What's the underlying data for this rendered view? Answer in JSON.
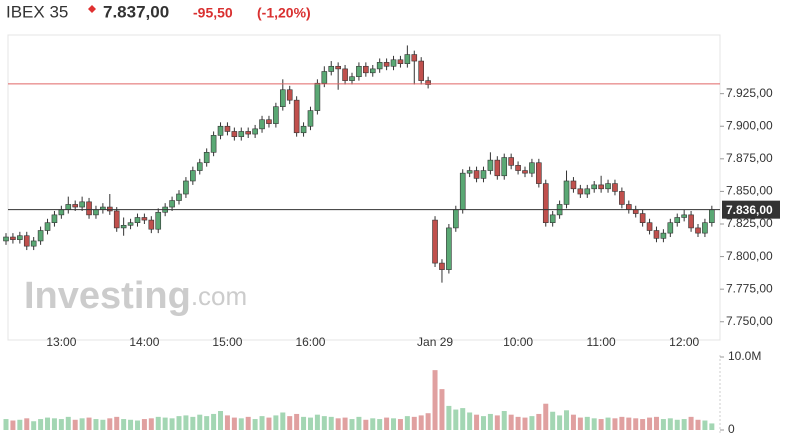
{
  "chart_data": {
    "type": "candlestick",
    "symbol": "IBEX 35",
    "last_price": "7.837,00",
    "change": "-95,50",
    "change_percent": "(-1,20%)",
    "watermark": "Investing",
    "watermark_suffix": ".com",
    "categories": [
      null,
      null,
      null,
      null,
      null,
      null,
      null,
      null,
      "13:00",
      null,
      null,
      null,
      null,
      null,
      null,
      null,
      null,
      null,
      null,
      null,
      "14:00",
      null,
      null,
      null,
      null,
      null,
      null,
      null,
      null,
      null,
      null,
      null,
      "15:00",
      null,
      null,
      null,
      null,
      null,
      null,
      null,
      null,
      null,
      null,
      null,
      "16:00",
      null,
      null,
      null,
      null,
      null,
      null,
      null,
      null,
      null,
      null,
      null,
      null,
      null,
      null,
      null,
      null,
      null,
      "Jan 29",
      null,
      null,
      null,
      null,
      null,
      null,
      null,
      null,
      null,
      null,
      null,
      "10:00",
      null,
      null,
      null,
      null,
      null,
      null,
      null,
      null,
      null,
      null,
      null,
      "11:00",
      null,
      null,
      null,
      null,
      null,
      null,
      null,
      null,
      null,
      null,
      null,
      "12:00",
      null,
      null,
      null,
      null
    ],
    "open": [
      7812,
      7815,
      7813,
      7816,
      7808,
      7812,
      7820,
      7826,
      7832,
      7836,
      7840,
      7838,
      7842,
      7832,
      7836,
      7838,
      7835,
      7822,
      7824,
      7826,
      7830,
      7828,
      7821,
      7834,
      7838,
      7843,
      7848,
      7858,
      7866,
      7872,
      7880,
      7893,
      7900,
      7896,
      7892,
      7896,
      7894,
      7898,
      7905,
      7902,
      7915,
      7928,
      7920,
      7895,
      7900,
      7912,
      7933,
      7942,
      7946,
      7944,
      7935,
      7938,
      7946,
      7941,
      7944,
      7949,
      7946,
      7951,
      7948,
      7955,
      7950,
      7935,
      7828,
      7795,
      7790,
      7822,
      7836,
      7864,
      7866,
      7860,
      7866,
      7874,
      7862,
      7876,
      7870,
      7866,
      7864,
      7872,
      7856,
      7826,
      7832,
      7840,
      7858,
      7852,
      7848,
      7852,
      7855,
      7852,
      7856,
      7850,
      7840,
      7836,
      7833,
      7826,
      7820,
      7814,
      7818,
      7826,
      7830,
      7832,
      7822,
      7818,
      7826
    ],
    "high": [
      7818,
      7818,
      7819,
      7819,
      7815,
      7823,
      7829,
      7835,
      7839,
      7846,
      7843,
      7846,
      7845,
      7839,
      7841,
      7848,
      7838,
      7830,
      7829,
      7833,
      7833,
      7831,
      7837,
      7841,
      7846,
      7851,
      7861,
      7869,
      7875,
      7883,
      7896,
      7903,
      7903,
      7899,
      7899,
      7899,
      7901,
      7908,
      7908,
      7918,
      7936,
      7931,
      7923,
      7903,
      7915,
      7936,
      7946,
      7950,
      7949,
      7947,
      7941,
      7949,
      7949,
      7947,
      7952,
      7952,
      7954,
      7954,
      7962,
      7958,
      7953,
      7938,
      7831,
      7798,
      7825,
      7839,
      7867,
      7869,
      7869,
      7869,
      7880,
      7877,
      7879,
      7879,
      7873,
      7869,
      7875,
      7875,
      7859,
      7835,
      7843,
      7866,
      7861,
      7855,
      7855,
      7858,
      7862,
      7859,
      7859,
      7853,
      7843,
      7839,
      7836,
      7829,
      7823,
      7821,
      7829,
      7833,
      7836,
      7835,
      7825,
      7829,
      7839
    ],
    "low": [
      7809,
      7810,
      7810,
      7805,
      7805,
      7809,
      7817,
      7823,
      7829,
      7833,
      7835,
      7835,
      7829,
      7829,
      7833,
      7832,
      7819,
      7816,
      7821,
      7823,
      7825,
      7818,
      7818,
      7831,
      7835,
      7840,
      7845,
      7855,
      7863,
      7869,
      7877,
      7890,
      7893,
      7889,
      7889,
      7891,
      7891,
      7895,
      7899,
      7899,
      7912,
      7917,
      7892,
      7892,
      7897,
      7909,
      7930,
      7939,
      7928,
      7932,
      7932,
      7935,
      7938,
      7938,
      7941,
      7943,
      7943,
      7945,
      7945,
      7932,
      7932,
      7929,
      7792,
      7780,
      7787,
      7819,
      7833,
      7861,
      7857,
      7857,
      7863,
      7859,
      7859,
      7867,
      7863,
      7861,
      7861,
      7853,
      7823,
      7823,
      7829,
      7837,
      7849,
      7845,
      7845,
      7849,
      7849,
      7849,
      7847,
      7837,
      7833,
      7830,
      7823,
      7817,
      7811,
      7811,
      7815,
      7823,
      7827,
      7819,
      7815,
      7815,
      7823
    ],
    "close": [
      7815,
      7813,
      7816,
      7808,
      7812,
      7820,
      7826,
      7832,
      7836,
      7840,
      7838,
      7842,
      7832,
      7836,
      7838,
      7835,
      7822,
      7824,
      7826,
      7830,
      7828,
      7821,
      7834,
      7838,
      7843,
      7848,
      7858,
      7866,
      7872,
      7880,
      7893,
      7900,
      7896,
      7892,
      7896,
      7894,
      7898,
      7905,
      7902,
      7915,
      7928,
      7920,
      7895,
      7900,
      7912,
      7933,
      7942,
      7946,
      7944,
      7935,
      7938,
      7946,
      7941,
      7944,
      7949,
      7946,
      7951,
      7948,
      7955,
      7950,
      7935,
      7932,
      7795,
      7790,
      7822,
      7836,
      7864,
      7866,
      7860,
      7866,
      7874,
      7862,
      7876,
      7870,
      7866,
      7864,
      7872,
      7856,
      7826,
      7832,
      7840,
      7858,
      7852,
      7848,
      7852,
      7855,
      7852,
      7856,
      7850,
      7840,
      7836,
      7833,
      7826,
      7820,
      7814,
      7818,
      7826,
      7830,
      7832,
      7822,
      7818,
      7826,
      7836
    ],
    "volume": [
      1500000,
      1300000,
      1400000,
      1600000,
      1200000,
      1500000,
      1700000,
      1600000,
      1500000,
      1800000,
      1400000,
      1600000,
      1700000,
      1500000,
      1400000,
      1600000,
      1800000,
      1500000,
      1400000,
      1300000,
      1500000,
      1600000,
      1800000,
      1700000,
      1600000,
      1900000,
      2000000,
      1800000,
      2100000,
      1900000,
      2200000,
      2600000,
      2000000,
      1700000,
      1600000,
      1800000,
      1500000,
      1900000,
      1700000,
      2000000,
      2400000,
      1900000,
      2200000,
      1800000,
      1700000,
      2100000,
      1900000,
      1800000,
      1600000,
      1700000,
      1500000,
      1800000,
      1400000,
      1600000,
      1500000,
      1700000,
      1600000,
      1500000,
      1900000,
      1800000,
      2000000,
      2300000,
      8200000,
      5600000,
      3300000,
      2800000,
      3000000,
      2400000,
      2100000,
      1900000,
      2200000,
      2000000,
      2600000,
      2100000,
      1800000,
      1700000,
      1900000,
      2200000,
      3600000,
      2500000,
      2000000,
      2700000,
      2100000,
      1700000,
      1800000,
      1600000,
      1500000,
      1700000,
      1600000,
      1800000,
      1700000,
      1600000,
      1500000,
      1700000,
      1800000,
      1500000,
      1600000,
      1400000,
      1500000,
      1800000,
      1400000,
      1300000,
      900000
    ],
    "ylim": [
      7736,
      7970
    ],
    "yticks": [
      {
        "value": 7750,
        "label": "7.750,00"
      },
      {
        "value": 7775,
        "label": "7.775,00"
      },
      {
        "value": 7800,
        "label": "7.800,00"
      },
      {
        "value": 7825,
        "label": "7.825,00"
      },
      {
        "value": 7850,
        "label": "7.850,00"
      },
      {
        "value": 7875,
        "label": "7.875,00"
      },
      {
        "value": 7900,
        "label": "7.900,00"
      },
      {
        "value": 7925,
        "label": "7.925,00"
      }
    ],
    "y2lim": [
      0,
      10000000
    ],
    "y2ticks": [
      {
        "value": 0,
        "label": "0"
      },
      {
        "value": 10000000,
        "label": "10.0M"
      }
    ],
    "previous_close": 7932.5,
    "current_price": {
      "value": 7836,
      "label": "7.836,00"
    },
    "up_color": "#5aa874",
    "down_color": "#c0504d",
    "up_volume_color": "#a3d6b3",
    "down_volume_color": "#e0a0a0",
    "previous_close_color": "#e06666",
    "current_price_color": "#333333"
  }
}
